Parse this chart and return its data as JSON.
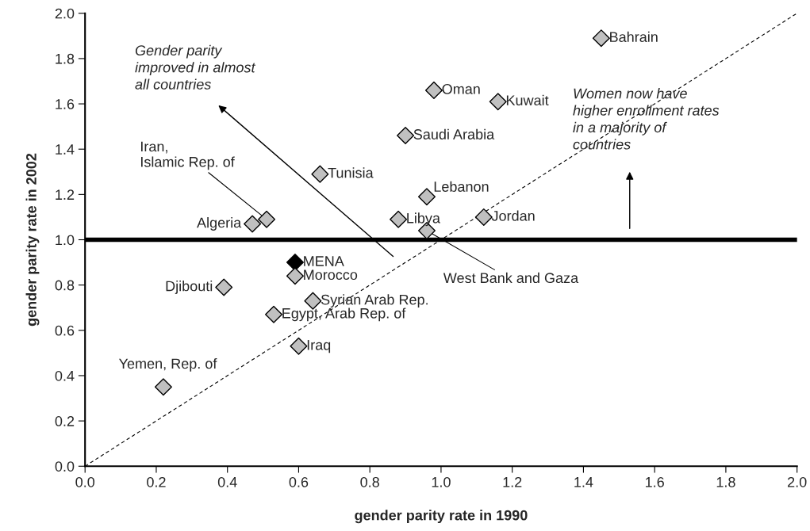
{
  "chart_data": {
    "type": "scatter",
    "xlabel": "gender parity rate in 1990",
    "ylabel": "gender parity rate in 2002",
    "xlim": [
      0,
      2
    ],
    "ylim": [
      0,
      2
    ],
    "xticks": [
      {
        "value": 0,
        "label": "0.0"
      },
      {
        "value": 0.2,
        "label": "0.2"
      },
      {
        "value": 0.4,
        "label": "0.4"
      },
      {
        "value": 0.6,
        "label": "0.6"
      },
      {
        "value": 0.8,
        "label": "0.8"
      },
      {
        "value": 1,
        "label": "1.0"
      },
      {
        "value": 1.2,
        "label": "1.2"
      },
      {
        "value": 1.4,
        "label": "1.4"
      },
      {
        "value": 1.6,
        "label": "1.6"
      },
      {
        "value": 1.8,
        "label": "1.8"
      },
      {
        "value": 2,
        "label": "2.0"
      }
    ],
    "yticks": [
      {
        "value": 0,
        "label": "0.0"
      },
      {
        "value": 0.2,
        "label": "0.2"
      },
      {
        "value": 0.4,
        "label": "0.4"
      },
      {
        "value": 0.6,
        "label": "0.6"
      },
      {
        "value": 0.8,
        "label": "0.8"
      },
      {
        "value": 1,
        "label": "1.0"
      },
      {
        "value": 1.2,
        "label": "1.2"
      },
      {
        "value": 1.4,
        "label": "1.4"
      },
      {
        "value": 1.6,
        "label": "1.6"
      },
      {
        "value": 1.8,
        "label": "1.8"
      },
      {
        "value": 2,
        "label": "2.0"
      }
    ],
    "grid": false,
    "marker": "diamond",
    "series": [
      {
        "name": "Bahrain",
        "color": "#c0c0c0",
        "x": [
          1.45
        ],
        "values": [
          1.89
        ]
      },
      {
        "name": "Oman",
        "color": "#c0c0c0",
        "x": [
          0.98
        ],
        "values": [
          1.66
        ]
      },
      {
        "name": "Kuwait",
        "color": "#c0c0c0",
        "x": [
          1.16
        ],
        "values": [
          1.61
        ]
      },
      {
        "name": "Saudi Arabia",
        "color": "#c0c0c0",
        "x": [
          0.9
        ],
        "values": [
          1.46
        ]
      },
      {
        "name": "Tunisia",
        "color": "#c0c0c0",
        "x": [
          0.66
        ],
        "values": [
          1.29
        ]
      },
      {
        "name": "Lebanon",
        "color": "#c0c0c0",
        "x": [
          0.96
        ],
        "values": [
          1.19
        ]
      },
      {
        "name": "Libya",
        "color": "#c0c0c0",
        "x": [
          0.88
        ],
        "values": [
          1.09
        ]
      },
      {
        "name": "Jordan",
        "color": "#c0c0c0",
        "x": [
          1.12
        ],
        "values": [
          1.1
        ]
      },
      {
        "name": "Iran,\nIslamic Rep. of",
        "color": "#c0c0c0",
        "x": [
          0.51
        ],
        "values": [
          1.09
        ]
      },
      {
        "name": "Algeria",
        "color": "#c0c0c0",
        "x": [
          0.47
        ],
        "values": [
          1.07
        ]
      },
      {
        "name": "West Bank and Gaza",
        "color": "#c0c0c0",
        "x": [
          0.96
        ],
        "values": [
          1.04
        ]
      },
      {
        "name": "MENA",
        "color": "#000000",
        "x": [
          0.59
        ],
        "values": [
          0.9
        ]
      },
      {
        "name": "Morocco",
        "color": "#c0c0c0",
        "x": [
          0.59
        ],
        "values": [
          0.84
        ]
      },
      {
        "name": "Djibouti",
        "color": "#c0c0c0",
        "x": [
          0.39
        ],
        "values": [
          0.79
        ]
      },
      {
        "name": "Syrian Arab Rep.",
        "color": "#c0c0c0",
        "x": [
          0.64
        ],
        "values": [
          0.73
        ]
      },
      {
        "name": "Egypt, Arab Rep. of",
        "color": "#c0c0c0",
        "x": [
          0.53
        ],
        "values": [
          0.67
        ]
      },
      {
        "name": "Iraq",
        "color": "#c0c0c0",
        "x": [
          0.6
        ],
        "values": [
          0.53
        ]
      },
      {
        "name": "Yemen, Rep. of",
        "color": "#c0c0c0",
        "x": [
          0.22
        ],
        "values": [
          0.35
        ]
      },
      {
        "type": "line",
        "color": "#000000",
        "line_style": "dashed",
        "marker": "none",
        "x": [
          0,
          2
        ],
        "values": [
          0,
          2
        ]
      }
    ],
    "ref_lines": [
      {
        "axis": "y",
        "value": 1,
        "color": "#000000"
      }
    ],
    "annotations": [
      "Gender parity\nimproved in almost\nall countries",
      "Women now have\nhigher enrollment rates\nin a majority of\ncountries"
    ]
  }
}
